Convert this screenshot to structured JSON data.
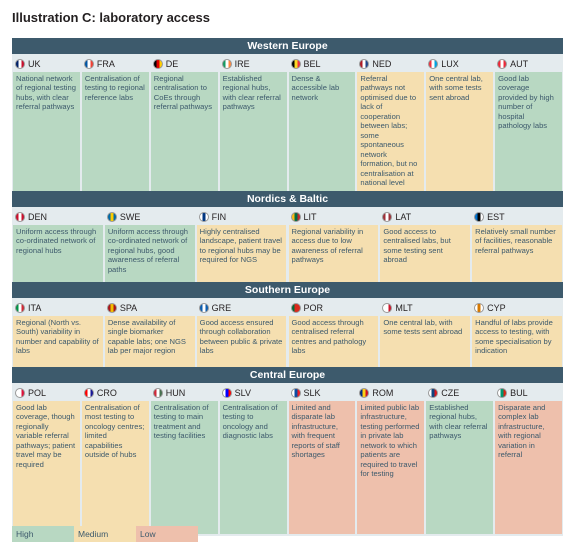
{
  "title": "Illustration C: laboratory access",
  "levels": {
    "high": "#b8d8c2",
    "medium": "#f5dfb0",
    "low": "#eec0ac"
  },
  "legend": [
    {
      "label": "High",
      "level": "high"
    },
    {
      "label": "Medium",
      "level": "medium"
    },
    {
      "label": "Low",
      "level": "low"
    }
  ],
  "regions": [
    {
      "name": "Western Europe",
      "countries": [
        {
          "code": "UK",
          "level": "high",
          "flag": [
            "#012169",
            "#ffffff",
            "#c8102e"
          ],
          "text": "National network of regional testing hubs, with clear referral pathways"
        },
        {
          "code": "FRA",
          "level": "high",
          "flag": [
            "#0055a4",
            "#ffffff",
            "#ef4135"
          ],
          "text": "Centralisation of testing to regional reference labs"
        },
        {
          "code": "DE",
          "level": "high",
          "flag": [
            "#000000",
            "#dd0000",
            "#ffce00"
          ],
          "text": "Regional centralisation to CoEs through referral pathways"
        },
        {
          "code": "IRE",
          "level": "high",
          "flag": [
            "#169b62",
            "#ffffff",
            "#ff883e"
          ],
          "text": "Established regional hubs, with clear referral pathways"
        },
        {
          "code": "BEL",
          "level": "high",
          "flag": [
            "#000000",
            "#fdda24",
            "#ef3340"
          ],
          "text": "Dense & accessible lab network"
        },
        {
          "code": "NED",
          "level": "medium",
          "flag": [
            "#ae1c28",
            "#ffffff",
            "#21468b"
          ],
          "text": "Referral pathways not optimised due to lack of cooperation between labs; some spontaneous network formation, but no centralisation at national level"
        },
        {
          "code": "LUX",
          "level": "medium",
          "flag": [
            "#ef3340",
            "#ffffff",
            "#00a3e0"
          ],
          "text": "One central lab, with some tests sent abroad"
        },
        {
          "code": "AUT",
          "level": "high",
          "flag": [
            "#ed2939",
            "#ffffff",
            "#ed2939"
          ],
          "text": "Good lab coverage provided by high number of hospital pathology labs"
        }
      ]
    },
    {
      "name": "Nordics & Baltic",
      "countries": [
        {
          "code": "DEN",
          "level": "high",
          "flag": [
            "#c8102e",
            "#ffffff",
            "#c8102e"
          ],
          "text": "Uniform access through co-ordinated network of regional hubs"
        },
        {
          "code": "SWE",
          "level": "high",
          "flag": [
            "#006aa7",
            "#fecc00",
            "#006aa7"
          ],
          "text": "Uniform access through co-ordinated network of regional hubs, good awareness of referral paths"
        },
        {
          "code": "FIN",
          "level": "medium",
          "flag": [
            "#ffffff",
            "#003580",
            "#ffffff"
          ],
          "text": "Highly centralised landscape, patient travel to regional hubs may be required for NGS"
        },
        {
          "code": "LIT",
          "level": "medium",
          "flag": [
            "#fdb913",
            "#006a44",
            "#c1272d"
          ],
          "text": "Regional variability in access due to low awareness of referral pathways"
        },
        {
          "code": "LAT",
          "level": "medium",
          "flag": [
            "#9e3039",
            "#ffffff",
            "#9e3039"
          ],
          "text": "Good access to centralised labs, but some testing sent abroad"
        },
        {
          "code": "EST",
          "level": "medium",
          "flag": [
            "#0072ce",
            "#000000",
            "#ffffff"
          ],
          "text": "Relatively small number of facilities, reasonable referral pathways"
        }
      ]
    },
    {
      "name": "Southern Europe",
      "countries": [
        {
          "code": "ITA",
          "level": "medium",
          "flag": [
            "#009246",
            "#ffffff",
            "#ce2b37"
          ],
          "text": "Regional (North vs. South) variability in number and capability of labs"
        },
        {
          "code": "SPA",
          "level": "medium",
          "flag": [
            "#aa151b",
            "#f1bf00",
            "#aa151b"
          ],
          "text": "Dense availability of single biomarker capable labs; one NGS lab per major region"
        },
        {
          "code": "GRE",
          "level": "medium",
          "flag": [
            "#0d5eaf",
            "#ffffff",
            "#0d5eaf"
          ],
          "text": "Good access ensured through collaboration between public & private labs"
        },
        {
          "code": "POR",
          "level": "medium",
          "flag": [
            "#046a38",
            "#da291c",
            "#da291c"
          ],
          "text": "Good access through centralised referral centres and pathology labs"
        },
        {
          "code": "MLT",
          "level": "medium",
          "flag": [
            "#ffffff",
            "#ffffff",
            "#cf142b"
          ],
          "text": "One central lab, with some tests sent abroad"
        },
        {
          "code": "CYP",
          "level": "medium",
          "flag": [
            "#ffffff",
            "#d57800",
            "#ffffff"
          ],
          "text": "Handful of labs provide access to testing, with some specialisation by indication"
        }
      ]
    },
    {
      "name": "Central Europe",
      "countries": [
        {
          "code": "POL",
          "level": "medium",
          "flag": [
            "#ffffff",
            "#ffffff",
            "#dc143c"
          ],
          "text": "Good lab coverage, though regionally variable referral pathways; patient travel may be required"
        },
        {
          "code": "CRO",
          "level": "medium",
          "flag": [
            "#ff0000",
            "#ffffff",
            "#171796"
          ],
          "text": "Centralisation of most testing to oncology centres; limited capabilities outside of hubs"
        },
        {
          "code": "HUN",
          "level": "high",
          "flag": [
            "#ce2939",
            "#ffffff",
            "#477050"
          ],
          "text": "Centralisation of testing to main treatment and testing facilities"
        },
        {
          "code": "SLV",
          "level": "high",
          "flag": [
            "#ffffff",
            "#0000ff",
            "#ff0000"
          ],
          "text": "Centralisation of testing to oncology and diagnostic labs"
        },
        {
          "code": "SLK",
          "level": "low",
          "flag": [
            "#ffffff",
            "#0b4ea2",
            "#ee1c25"
          ],
          "text": "Limited and disparate lab infrastructure, with frequent reports of staff shortages"
        },
        {
          "code": "ROM",
          "level": "low",
          "flag": [
            "#002b7f",
            "#fcd116",
            "#ce1126"
          ],
          "text": "Limited public lab infrastructure, testing performed in private lab network to which patients are required to travel for testing"
        },
        {
          "code": "CZE",
          "level": "high",
          "flag": [
            "#ffffff",
            "#11457e",
            "#d7141a"
          ],
          "text": "Established regional hubs, with clear referral pathways"
        },
        {
          "code": "BUL",
          "level": "low",
          "flag": [
            "#ffffff",
            "#00966e",
            "#d62612"
          ],
          "text": "Disparate and complex lab infrastructure, with regional variation in referral"
        }
      ]
    }
  ]
}
